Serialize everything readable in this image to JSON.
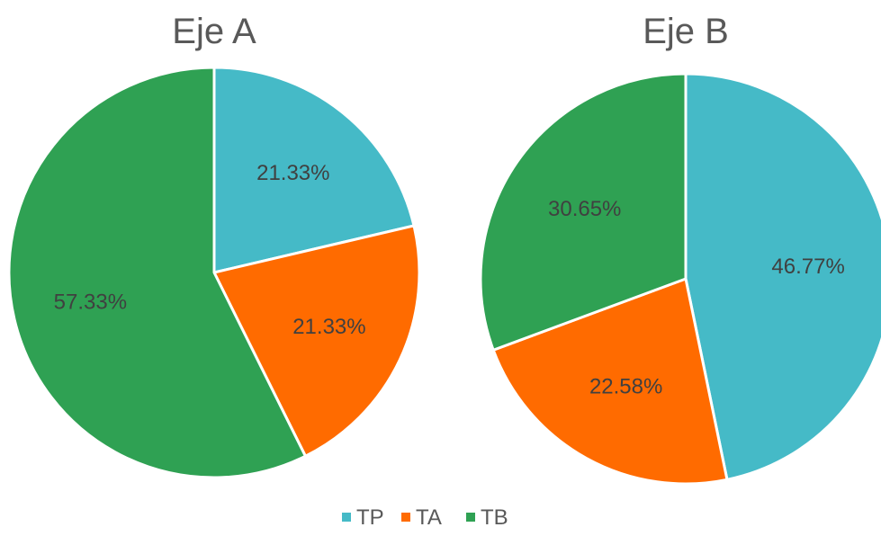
{
  "chart_data": [
    {
      "type": "pie",
      "title": "Eje A",
      "categories": [
        "TP",
        "TA",
        "TB"
      ],
      "values": [
        21.33,
        21.33,
        57.33
      ],
      "labels": [
        "21.33%",
        "21.33%",
        "57.33%"
      ]
    },
    {
      "type": "pie",
      "title": "Eje B",
      "categories": [
        "TP",
        "TA",
        "TB"
      ],
      "values": [
        46.77,
        22.58,
        30.65
      ],
      "labels": [
        "46.77%",
        "22.58%",
        "30.65%"
      ]
    }
  ],
  "legend": {
    "position": "bottom",
    "items": [
      {
        "label": "TP",
        "color": "#45BAC7"
      },
      {
        "label": "TA",
        "color": "#FF6B00"
      },
      {
        "label": "TB",
        "color": "#2FA153"
      }
    ]
  }
}
